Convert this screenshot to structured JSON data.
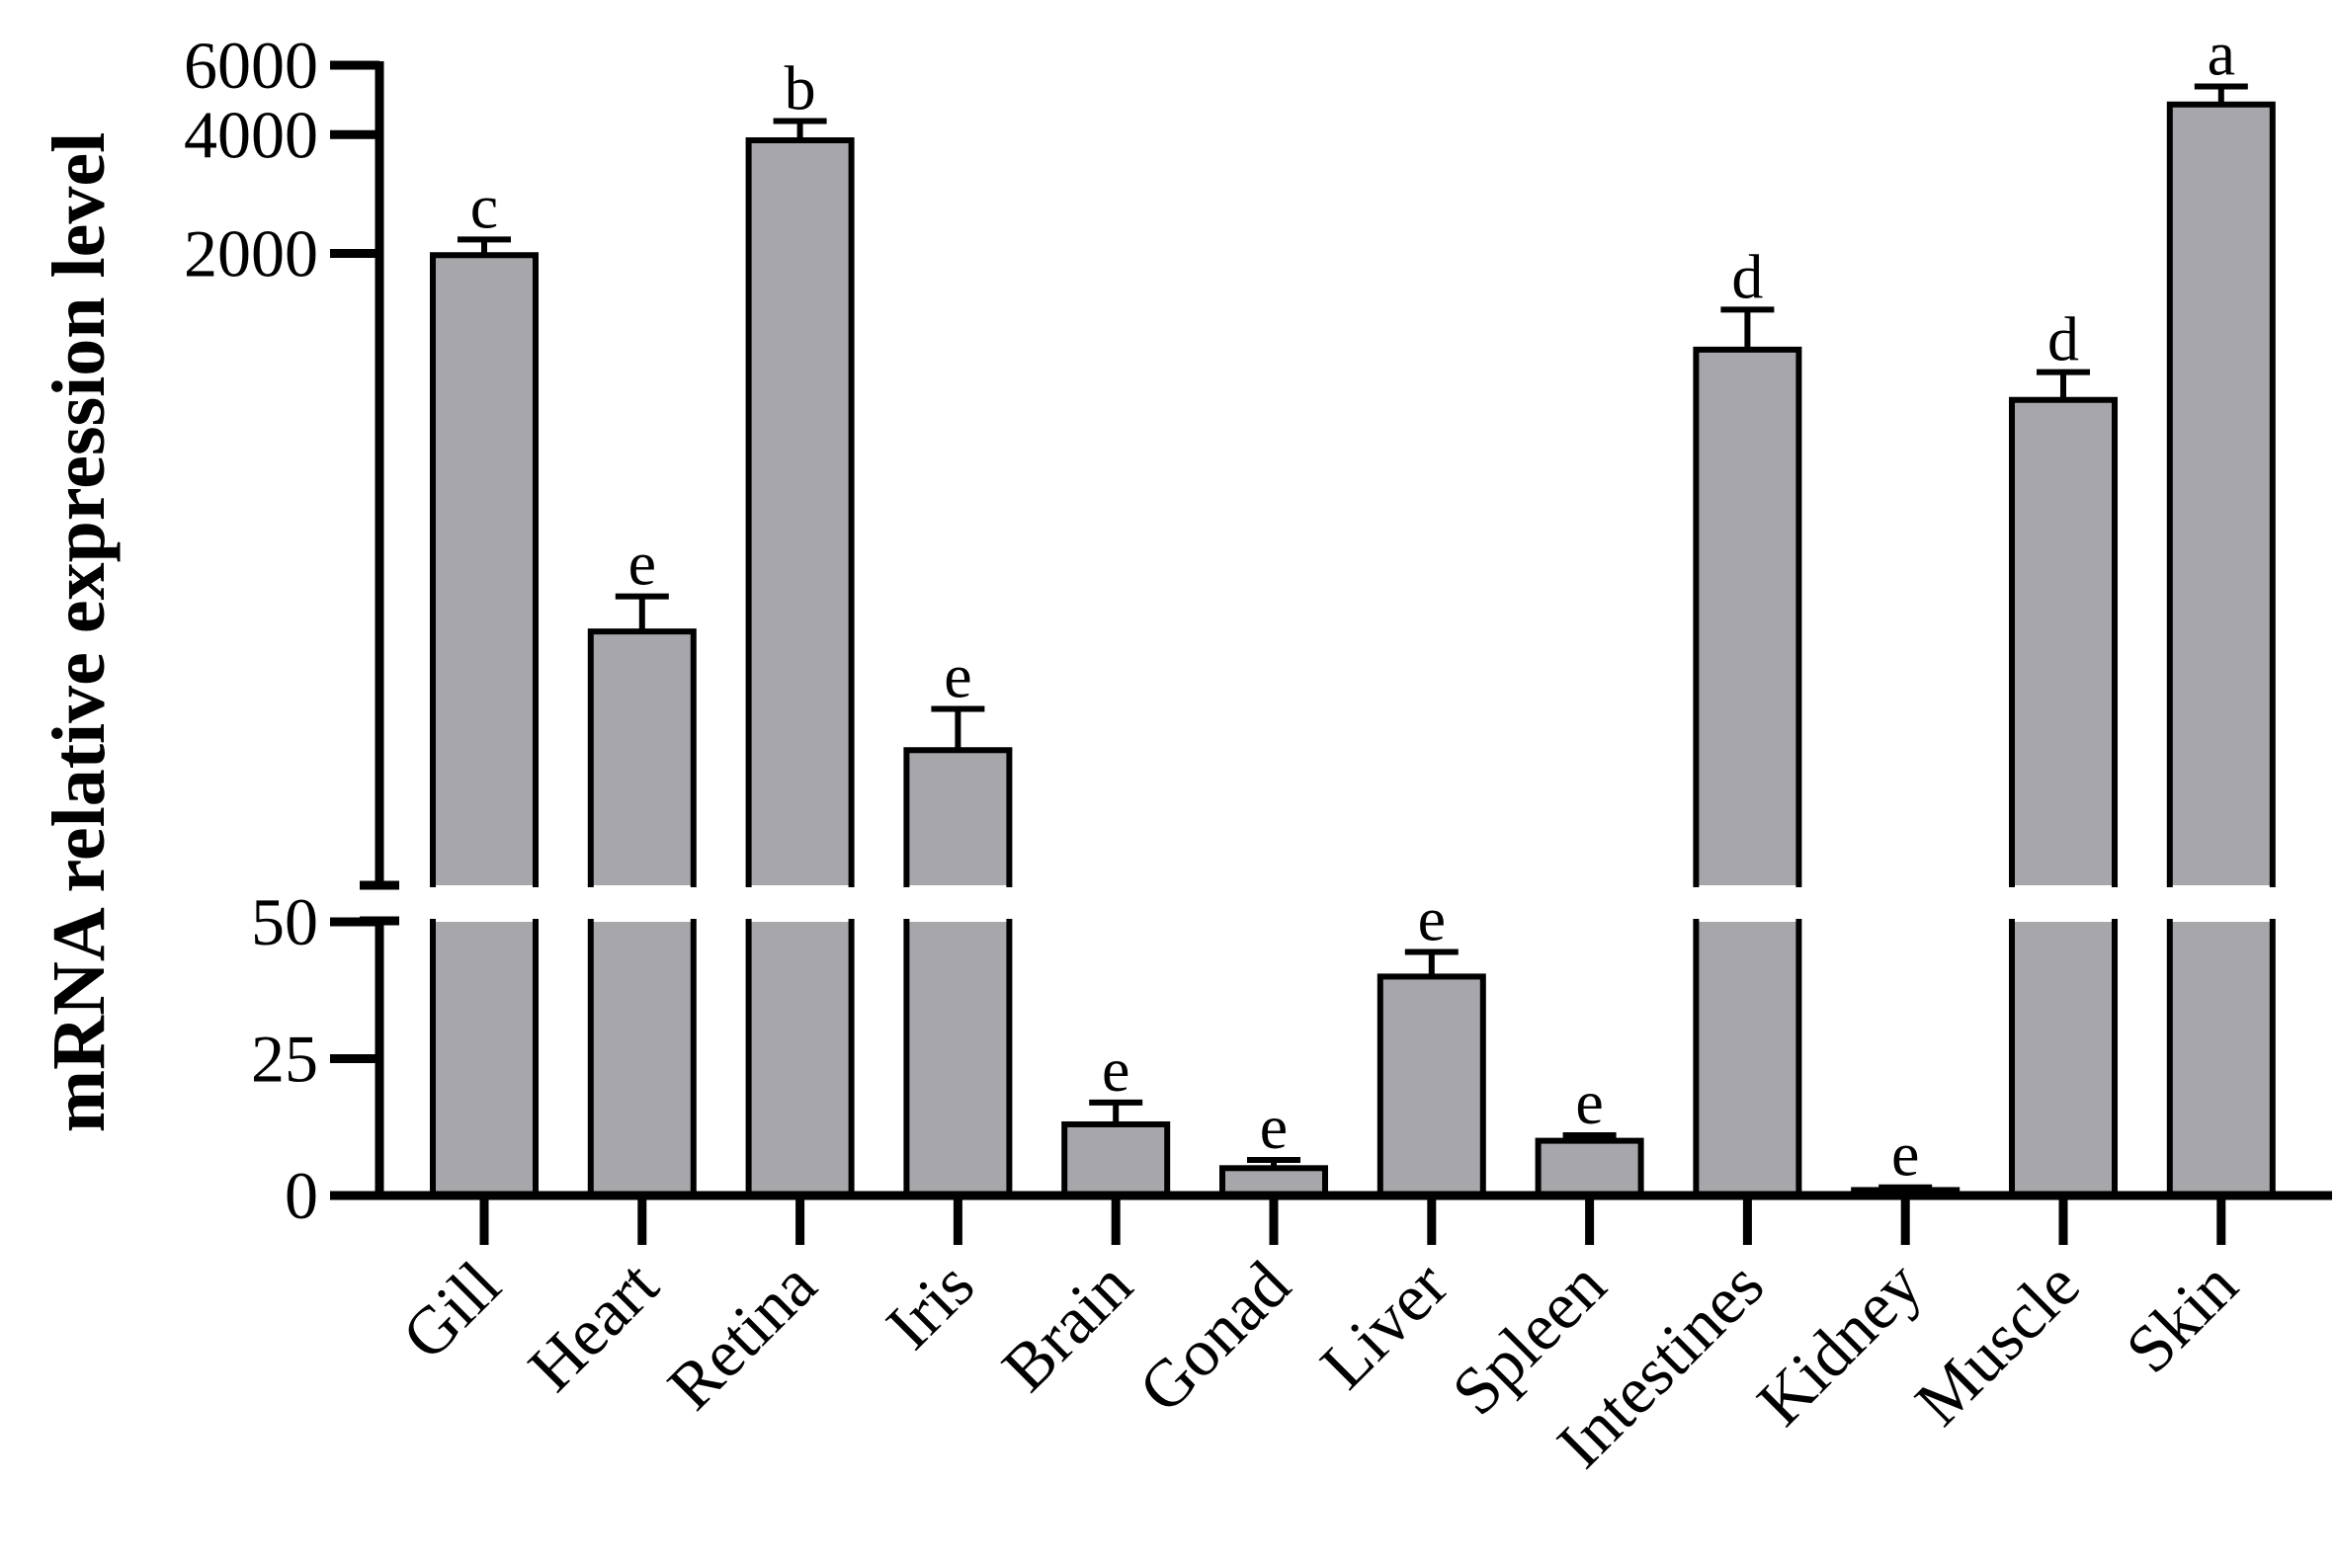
{
  "chart_data": {
    "type": "bar",
    "ylabel": "mRNA relative expression level",
    "xlabel": "",
    "title": "",
    "y_axis_break": true,
    "upper_segment": {
      "ylim": [
        50,
        6000
      ],
      "ticks": [
        "2000",
        "4000",
        "6000"
      ]
    },
    "lower_segment": {
      "ylim": [
        0,
        50
      ],
      "ticks": [
        "0",
        "25",
        "50"
      ]
    },
    "bar_color": "#a7a6ab",
    "categories": [
      "Gill",
      "Heart",
      "Retina",
      "Iris",
      "Brain",
      "Gonad",
      "Liver",
      "Spleen",
      "Intestines",
      "Kidney",
      "Muscle",
      "Skin"
    ],
    "values": [
      1980,
      220,
      3870,
      110,
      13,
      5,
      40,
      10,
      1140,
      1,
      850,
      4770
    ],
    "errors": [
      190,
      50,
      460,
      30,
      4,
      1.5,
      4.5,
      1,
      300,
      0.5,
      150,
      530
    ],
    "significance": [
      "c",
      "e",
      "b",
      "e",
      "e",
      "e",
      "e",
      "e",
      "d",
      "e",
      "d",
      "a"
    ],
    "grid": false,
    "legend": "none"
  }
}
